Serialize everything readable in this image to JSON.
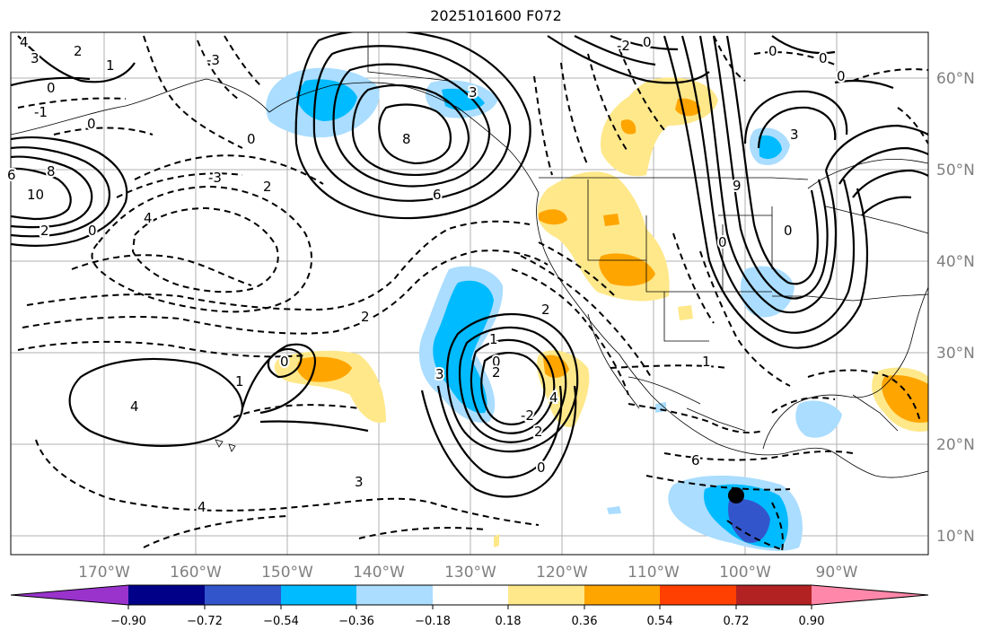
{
  "title": "2025101600 F072",
  "map": {
    "lon_labels": [
      "170°W",
      "160°W",
      "150°W",
      "140°W",
      "130°W",
      "120°W",
      "110°W",
      "100°W",
      "90°W"
    ],
    "lat_labels": [
      "60°N",
      "50°N",
      "40°N",
      "30°N",
      "20°N",
      "10°N"
    ],
    "contour_labels": [
      "3",
      "2",
      "4",
      "0",
      "-3",
      "1",
      "-1",
      "0",
      "0",
      "3",
      "8",
      "6",
      "10",
      "8",
      "2",
      "4",
      "-3",
      "2",
      "6",
      "0",
      "4",
      "0",
      "1",
      "2",
      "1",
      "0",
      "-2",
      "2",
      "3",
      "4",
      "3",
      "0",
      "2",
      "4",
      "1",
      "6",
      "2",
      "3",
      "9",
      "0",
      "0",
      "-2",
      "0",
      "0",
      "0",
      "0"
    ],
    "marker": "black-dot"
  },
  "colorbar": {
    "colors": [
      "#9933cc",
      "#000088",
      "#3355cc",
      "#00bbff",
      "#aaddff",
      "#ffffff",
      "#ffe88a",
      "#ffa500",
      "#ff4000",
      "#b22222",
      "#ff88aa"
    ],
    "tick_labels": [
      "−0.90",
      "−0.72",
      "−0.54",
      "−0.36",
      "−0.18",
      "0.18",
      "0.36",
      "0.54",
      "0.72",
      "0.90"
    ]
  }
}
